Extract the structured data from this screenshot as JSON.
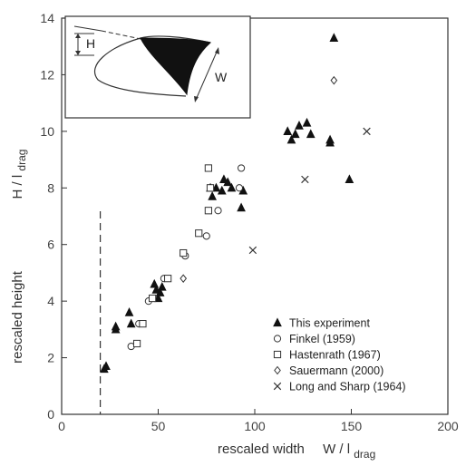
{
  "chart_data": {
    "type": "scatter",
    "xlim": [
      0,
      200
    ],
    "ylim": [
      0,
      14
    ],
    "x_ticks": [
      0,
      50,
      100,
      150,
      200
    ],
    "y_ticks": [
      0,
      2,
      4,
      6,
      8,
      10,
      12,
      14
    ],
    "x_tick_labels": [
      "0",
      "50",
      "100",
      "150",
      "200"
    ],
    "y_tick_labels": [
      "0",
      "2",
      "4",
      "6",
      "8",
      "10",
      "12",
      "14"
    ],
    "xlabel_main": "rescaled width",
    "xlabel_symbol": "W / l",
    "xlabel_sub": "drag",
    "ylabel_main": "rescaled height",
    "ylabel_symbol": "H / l",
    "ylabel_sub": "drag",
    "reference_line_x": 20,
    "grid": false,
    "legend_position": "bottom-right",
    "inset": {
      "label_h": "H",
      "label_w": "W"
    },
    "series": [
      {
        "name": "This experiment",
        "marker": "filled-triangle",
        "points": [
          [
            22,
            1.6
          ],
          [
            23,
            1.7
          ],
          [
            28,
            3.0
          ],
          [
            28,
            3.1
          ],
          [
            35,
            3.6
          ],
          [
            36,
            3.2
          ],
          [
            48,
            4.6
          ],
          [
            49,
            4.4
          ],
          [
            50,
            4.1
          ],
          [
            51,
            4.3
          ],
          [
            52,
            4.5
          ],
          [
            77,
            8.0
          ],
          [
            78,
            7.7
          ],
          [
            80,
            8.0
          ],
          [
            83,
            7.9
          ],
          [
            84,
            8.3
          ],
          [
            86,
            8.2
          ],
          [
            88,
            8.0
          ],
          [
            93,
            7.3
          ],
          [
            94,
            7.9
          ],
          [
            117,
            10.0
          ],
          [
            119,
            9.7
          ],
          [
            121,
            9.9
          ],
          [
            123,
            10.2
          ],
          [
            127,
            10.3
          ],
          [
            129,
            9.9
          ],
          [
            139,
            9.7
          ],
          [
            139,
            9.6
          ],
          [
            141,
            13.3
          ],
          [
            149,
            8.3
          ]
        ]
      },
      {
        "name": "Finkel (1959)",
        "marker": "open-circle",
        "points": [
          [
            36,
            2.4
          ],
          [
            40,
            3.2
          ],
          [
            45,
            4.0
          ],
          [
            53,
            4.8
          ],
          [
            64,
            5.6
          ],
          [
            75,
            6.3
          ],
          [
            81,
            7.2
          ],
          [
            92,
            8.0
          ],
          [
            93,
            8.7
          ]
        ]
      },
      {
        "name": "Hastenrath (1967)",
        "marker": "open-square",
        "points": [
          [
            39,
            2.5
          ],
          [
            42,
            3.2
          ],
          [
            47,
            4.1
          ],
          [
            55,
            4.8
          ],
          [
            63,
            5.7
          ],
          [
            71,
            6.4
          ],
          [
            76,
            7.2
          ],
          [
            77,
            8.0
          ],
          [
            76,
            8.7
          ]
        ]
      },
      {
        "name": "Sauermann (2000)",
        "marker": "open-diamond",
        "points": [
          [
            63,
            4.8
          ],
          [
            141,
            11.8
          ]
        ]
      },
      {
        "name": "Long and Sharp (1964)",
        "marker": "cross",
        "points": [
          [
            99,
            5.8
          ],
          [
            126,
            8.3
          ],
          [
            158,
            10.0
          ]
        ]
      }
    ]
  }
}
